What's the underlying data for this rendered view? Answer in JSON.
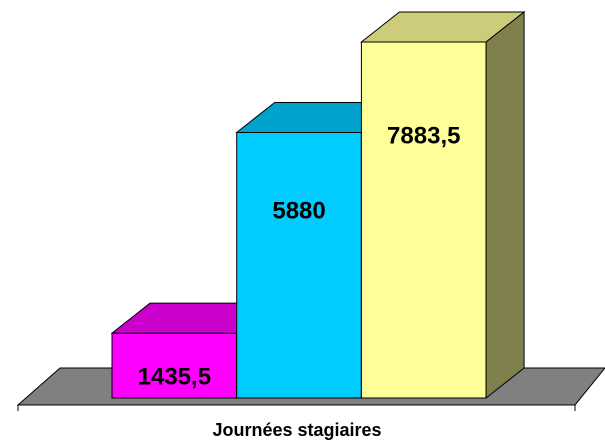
{
  "chart_data": {
    "type": "bar3d",
    "categories": [
      "Journées stagiaires"
    ],
    "series": [
      {
        "color": "#ff00ff",
        "values": [
          1435.5
        ],
        "value_labels": [
          "1435,5"
        ]
      },
      {
        "color": "#00ccff",
        "values": [
          5880
        ],
        "value_labels": [
          "5880"
        ]
      },
      {
        "color": "#ffff99",
        "values": [
          7883.5
        ],
        "value_labels": [
          "7883,5"
        ]
      }
    ]
  }
}
